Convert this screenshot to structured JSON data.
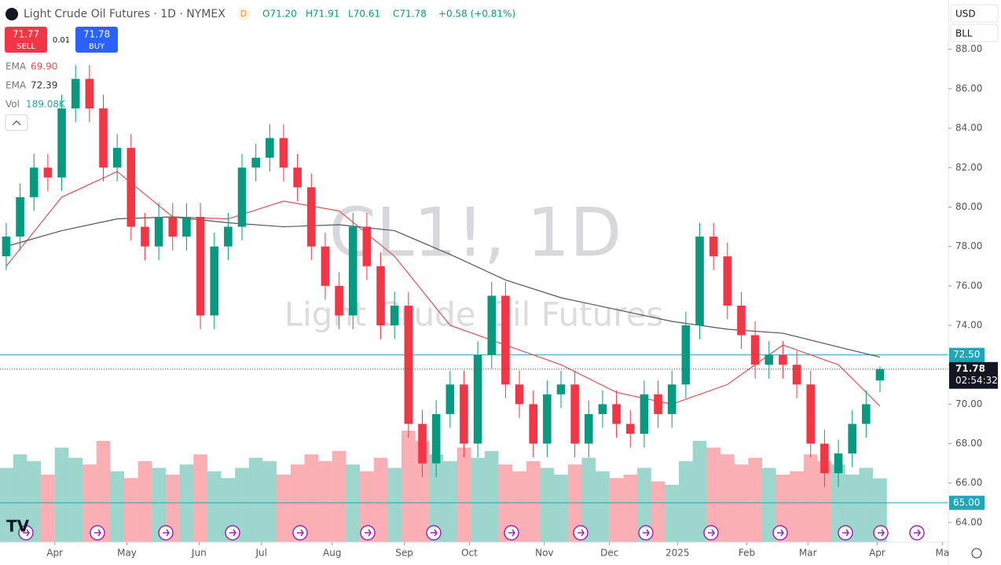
{
  "ui": {
    "title": "Light Crude Oil Futures · 1D · NYMEX",
    "badge": "D",
    "ohlc": [
      "O71.20",
      "H71.91",
      "L70.61",
      "C71.78",
      "+0.58 (+0.81%)"
    ],
    "sell_price": "71.77",
    "sell": "SELL",
    "spread": "0.01",
    "buy_price": "71.78",
    "buy": "BUY",
    "legend": [
      {
        "name": "EMA",
        "value": "69.90"
      },
      {
        "name": "EMA",
        "value": "72.39"
      },
      {
        "name": "Vol",
        "value": "189.08K"
      }
    ],
    "currency": "USD",
    "unit": "BLL"
  },
  "chart_data": {
    "type": "candlestick",
    "watermark": [
      "CL1!, 1D",
      "Light Crude Oil Futures"
    ],
    "up_color": "#089981",
    "down_color": "#f23645",
    "open": [
      77.5,
      78.5,
      80.5,
      82.0,
      81.5,
      85.0,
      86.5,
      85.0,
      82.0,
      83.0,
      79.0,
      78.0,
      79.5,
      78.5,
      79.5,
      74.5,
      78.0,
      79.0,
      82.0,
      82.5,
      83.5,
      82.0,
      81.0,
      78.0,
      76.0,
      74.5,
      79.0,
      77.0,
      74.0,
      75.0,
      69.0,
      67.0,
      69.5,
      71.0,
      68.0,
      72.5,
      75.5,
      71.0,
      70.0,
      68.0,
      70.5,
      71.0,
      68.0,
      69.5,
      70.0,
      69.0,
      68.5,
      70.5,
      69.5,
      71.0,
      74.0,
      78.5,
      77.5,
      75.0,
      73.5,
      72.0,
      72.5,
      72.0,
      71.0,
      68.0,
      66.5,
      67.5,
      69.0,
      71.2
    ],
    "high": [
      79.2,
      81.2,
      82.7,
      82.7,
      85.7,
      87.2,
      87.2,
      85.7,
      83.7,
      83.7,
      79.7,
      80.2,
      80.2,
      80.2,
      80.2,
      78.7,
      79.7,
      82.7,
      83.2,
      84.2,
      84.2,
      82.7,
      81.7,
      78.7,
      76.7,
      79.7,
      79.7,
      77.7,
      75.7,
      75.7,
      69.7,
      70.2,
      71.7,
      71.7,
      73.2,
      76.2,
      76.2,
      71.7,
      70.7,
      71.2,
      71.7,
      71.7,
      70.2,
      70.7,
      70.7,
      69.7,
      71.2,
      71.2,
      71.7,
      74.7,
      79.2,
      79.2,
      78.2,
      75.7,
      74.2,
      73.2,
      73.2,
      72.7,
      71.7,
      68.7,
      68.2,
      69.7,
      70.7,
      71.91
    ],
    "low": [
      76.8,
      77.8,
      79.8,
      80.8,
      80.8,
      84.3,
      84.3,
      81.3,
      81.3,
      78.3,
      77.3,
      77.3,
      77.8,
      77.8,
      73.8,
      73.8,
      77.3,
      78.3,
      81.3,
      81.8,
      81.3,
      80.3,
      77.3,
      75.3,
      73.8,
      73.8,
      76.3,
      73.3,
      73.3,
      68.3,
      66.3,
      66.3,
      68.8,
      67.3,
      67.3,
      71.8,
      70.3,
      69.3,
      67.3,
      67.3,
      69.8,
      67.3,
      67.3,
      68.8,
      68.3,
      67.8,
      67.8,
      68.8,
      68.8,
      70.3,
      73.3,
      76.8,
      74.3,
      72.8,
      71.3,
      71.3,
      71.3,
      70.3,
      67.3,
      65.8,
      65.8,
      66.8,
      68.3,
      70.61
    ],
    "close": [
      78.5,
      80.5,
      82.0,
      81.5,
      85.0,
      86.5,
      85.0,
      82.0,
      83.0,
      79.0,
      78.0,
      79.5,
      78.5,
      79.5,
      74.5,
      78.0,
      79.0,
      82.0,
      82.5,
      83.5,
      82.0,
      81.0,
      78.0,
      76.0,
      74.5,
      79.0,
      77.0,
      74.0,
      75.0,
      69.0,
      67.0,
      69.5,
      71.0,
      68.0,
      72.5,
      75.5,
      71.0,
      70.0,
      68.0,
      70.5,
      71.0,
      68.0,
      69.5,
      70.0,
      69.0,
      68.5,
      70.5,
      69.5,
      71.0,
      74.0,
      78.5,
      77.5,
      75.0,
      73.5,
      72.0,
      72.5,
      72.0,
      71.0,
      68.0,
      66.5,
      67.5,
      69.0,
      70.0,
      71.78
    ],
    "volume": [
      220,
      260,
      240,
      200,
      280,
      250,
      230,
      300,
      210,
      190,
      240,
      220,
      200,
      230,
      260,
      210,
      190,
      220,
      250,
      240,
      200,
      230,
      260,
      240,
      270,
      230,
      210,
      250,
      220,
      330,
      300,
      260,
      240,
      280,
      250,
      270,
      230,
      210,
      240,
      220,
      200,
      230,
      250,
      210,
      190,
      200,
      220,
      180,
      170,
      240,
      300,
      280,
      260,
      230,
      250,
      220,
      200,
      210,
      260,
      240,
      230,
      200,
      220,
      189.08
    ],
    "vlim": [
      0,
      600
    ],
    "indicators": [
      {
        "name": "EMA",
        "color": "#e05252",
        "x": [
          0,
          4,
          8,
          12,
          16,
          20,
          24,
          28,
          32,
          36,
          40,
          44,
          48,
          52,
          56,
          60,
          63
        ],
        "values": [
          77.0,
          80.5,
          81.8,
          79.5,
          79.4,
          80.3,
          79.8,
          77.5,
          74.0,
          73.0,
          72.0,
          70.6,
          70.0,
          71.0,
          73.0,
          72.0,
          69.9
        ]
      },
      {
        "name": "EMA",
        "color": "#555555",
        "x": [
          0,
          4,
          8,
          12,
          16,
          20,
          24,
          28,
          32,
          36,
          40,
          44,
          48,
          52,
          56,
          60,
          63
        ],
        "values": [
          78.0,
          78.8,
          79.4,
          79.5,
          79.2,
          79.0,
          79.1,
          78.8,
          77.6,
          76.3,
          75.4,
          74.8,
          74.2,
          73.8,
          73.6,
          72.9,
          72.39
        ]
      }
    ],
    "levels": [
      {
        "value": 72.5,
        "label": "72.50",
        "color": "#22a5b8"
      },
      {
        "value": 65.0,
        "label": "65.00",
        "color": "#22a5b8"
      }
    ],
    "last": {
      "value": 71.78,
      "label": "71.78",
      "countdown": "02:54:32"
    },
    "ylim": [
      63,
      90.5
    ],
    "yticks": [
      {
        "value": 64,
        "label": "64.00"
      },
      {
        "value": 66,
        "label": "66.00"
      },
      {
        "value": 68,
        "label": "68.00"
      },
      {
        "value": 70,
        "label": "70.00"
      },
      {
        "value": 72,
        "label": "72.00"
      },
      {
        "value": 74,
        "label": "74.00"
      },
      {
        "value": 76,
        "label": "76.00"
      },
      {
        "value": 78,
        "label": "78.00"
      },
      {
        "value": 80,
        "label": "80.00"
      },
      {
        "value": 82,
        "label": "82.00"
      },
      {
        "value": 84,
        "label": "84.00"
      },
      {
        "value": 86,
        "label": "86.00"
      },
      {
        "value": 88,
        "label": "88.00"
      }
    ],
    "xlim": [
      -0.45,
      67.93
    ],
    "xticks": [
      {
        "value": 3.5,
        "label": "Apr"
      },
      {
        "value": 8.7,
        "label": "May"
      },
      {
        "value": 13.9,
        "label": "Jun"
      },
      {
        "value": 18.4,
        "label": "Jul"
      },
      {
        "value": 23.5,
        "label": "Aug"
      },
      {
        "value": 28.7,
        "label": "Sep"
      },
      {
        "value": 33.4,
        "label": "Oct"
      },
      {
        "value": 38.8,
        "label": "Nov"
      },
      {
        "value": 43.5,
        "label": "Dec"
      },
      {
        "value": 48.4,
        "label": "2025"
      },
      {
        "value": 53.4,
        "label": "Feb"
      },
      {
        "value": 57.8,
        "label": "Mar"
      },
      {
        "value": 62.8,
        "label": "Apr"
      },
      {
        "value": 67.5,
        "label": "Ma"
      }
    ]
  }
}
